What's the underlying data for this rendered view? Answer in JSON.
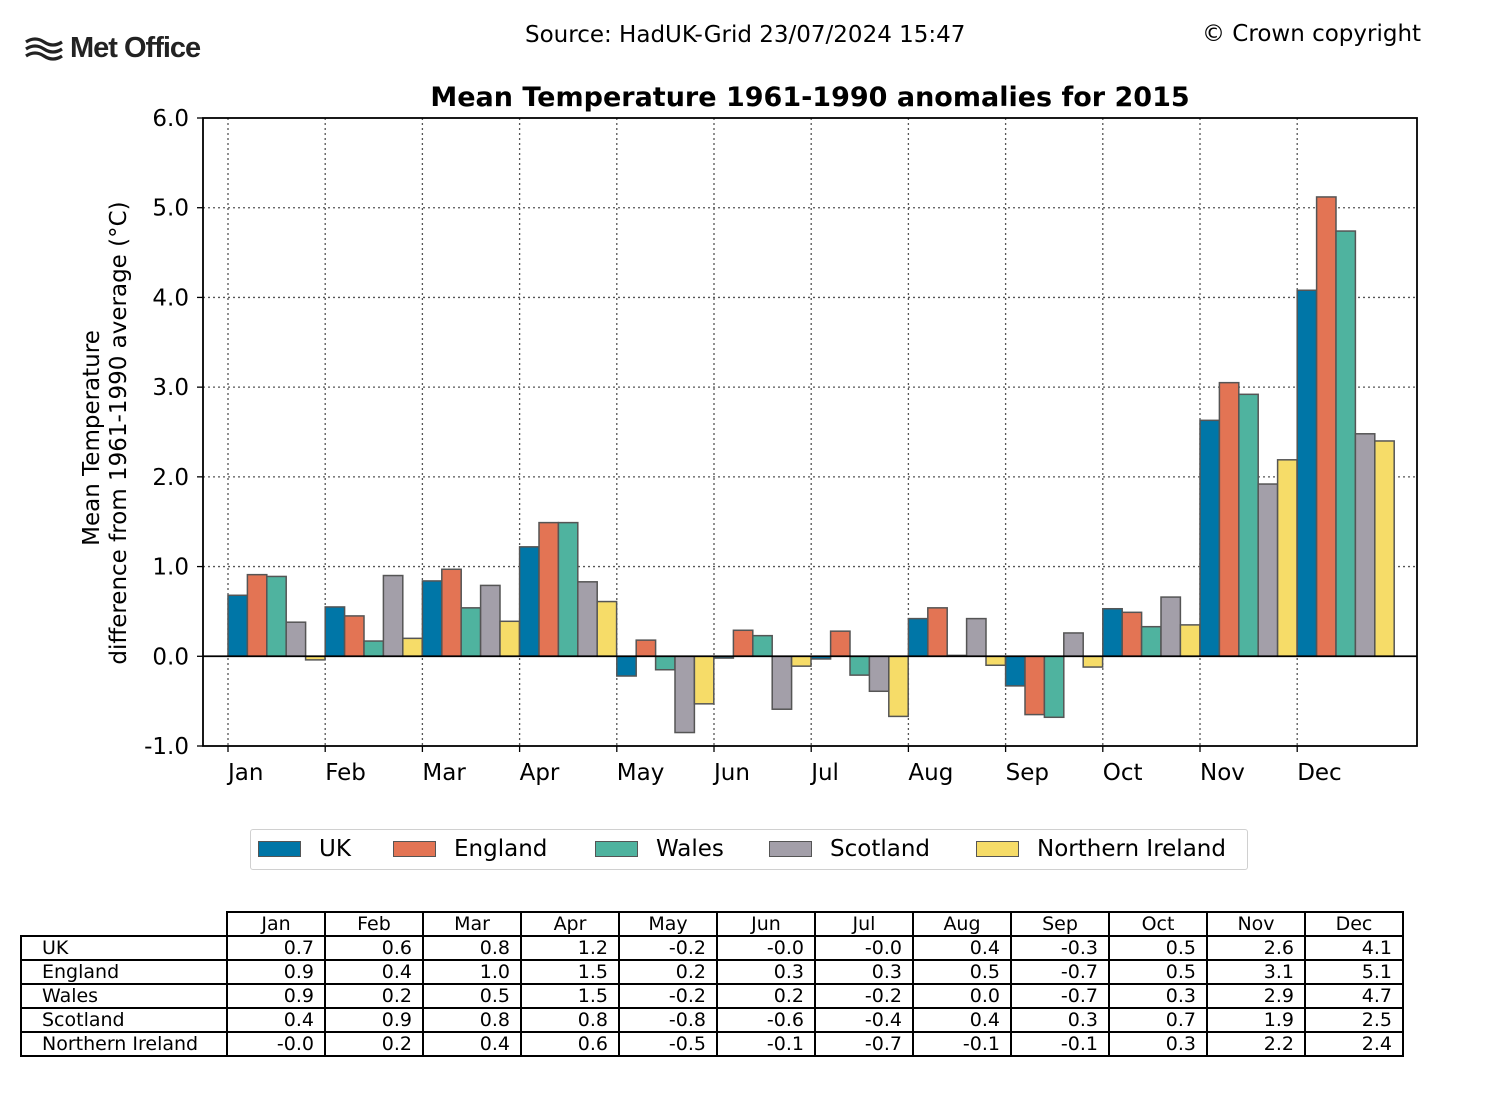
{
  "header": {
    "logo_text": "Met Office",
    "source": "Source: HadUK-Grid 23/07/2024 15:47",
    "copyright": "© Crown copyright"
  },
  "chart_data": {
    "type": "bar",
    "title": "Mean Temperature 1961-1990 anomalies for 2015",
    "ylabel_line1": "Mean Temperature",
    "ylabel_line2": "difference from 1961-1990 average (°C)",
    "xlabel": "",
    "ylim": [
      -1.0,
      6.0
    ],
    "yticks": [
      "6.0",
      "5.0",
      "4.0",
      "3.0",
      "2.0",
      "1.0",
      "0.0",
      "-1.0"
    ],
    "ytick_values": [
      6,
      5,
      4,
      3,
      2,
      1,
      0,
      -1
    ],
    "grid": true,
    "legend_position": "bottom",
    "categories": [
      "Jan",
      "Feb",
      "Mar",
      "Apr",
      "May",
      "Jun",
      "Jul",
      "Aug",
      "Sep",
      "Oct",
      "Nov",
      "Dec"
    ],
    "series": [
      {
        "name": "UK",
        "color": "#0076a7",
        "values": [
          0.68,
          0.55,
          0.84,
          1.22,
          -0.22,
          -0.02,
          -0.03,
          0.42,
          -0.33,
          0.53,
          2.63,
          4.08
        ],
        "table": [
          "0.7",
          "0.6",
          "0.8",
          "1.2",
          "-0.2",
          "-0.0",
          "-0.0",
          "0.4",
          "-0.3",
          "0.5",
          "2.6",
          "4.1"
        ]
      },
      {
        "name": "England",
        "color": "#e37454",
        "values": [
          0.91,
          0.45,
          0.97,
          1.49,
          0.18,
          0.29,
          0.28,
          0.54,
          -0.65,
          0.49,
          3.05,
          5.12
        ],
        "table": [
          "0.9",
          "0.4",
          "1.0",
          "1.5",
          "0.2",
          "0.3",
          "0.3",
          "0.5",
          "-0.7",
          "0.5",
          "3.1",
          "5.1"
        ]
      },
      {
        "name": "Wales",
        "color": "#4fb39f",
        "values": [
          0.89,
          0.17,
          0.54,
          1.49,
          -0.15,
          0.23,
          -0.21,
          0.01,
          -0.68,
          0.33,
          2.92,
          4.74
        ],
        "table": [
          "0.9",
          "0.2",
          "0.5",
          "1.5",
          "-0.2",
          "0.2",
          "-0.2",
          "0.0",
          "-0.7",
          "0.3",
          "2.9",
          "4.7"
        ]
      },
      {
        "name": "Scotland",
        "color": "#a39fa9",
        "values": [
          0.38,
          0.9,
          0.79,
          0.83,
          -0.85,
          -0.59,
          -0.39,
          0.42,
          0.26,
          0.66,
          1.92,
          2.48
        ],
        "table": [
          "0.4",
          "0.9",
          "0.8",
          "0.8",
          "-0.8",
          "-0.6",
          "-0.4",
          "0.4",
          "0.3",
          "0.7",
          "1.9",
          "2.5"
        ]
      },
      {
        "name": "Northern Ireland",
        "color": "#f6dc68",
        "values": [
          -0.04,
          0.2,
          0.39,
          0.61,
          -0.53,
          -0.11,
          -0.67,
          -0.1,
          -0.12,
          0.35,
          2.19,
          2.4
        ],
        "table": [
          "-0.0",
          "0.2",
          "0.4",
          "0.6",
          "-0.5",
          "-0.1",
          "-0.7",
          "-0.1",
          "-0.1",
          "0.3",
          "2.2",
          "2.4"
        ]
      }
    ]
  }
}
